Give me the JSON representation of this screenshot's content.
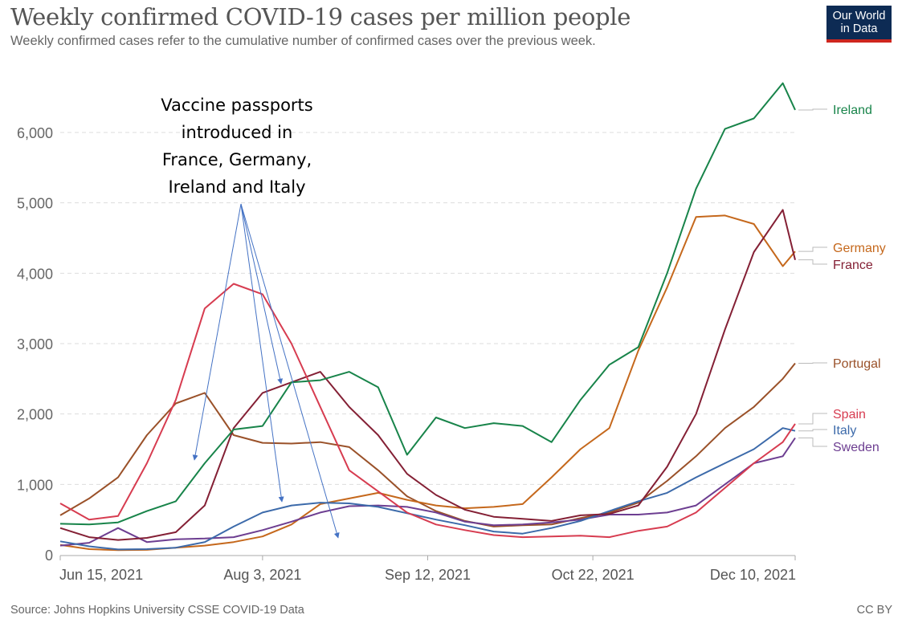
{
  "header": {
    "title": "Weekly confirmed COVID-19 cases per million people",
    "subtitle": "Weekly confirmed cases refer to the cumulative number of confirmed cases over the previous week.",
    "logo_line1": "Our World",
    "logo_line2": "in Data"
  },
  "footer": {
    "source": "Source: Johns Hopkins University CSSE COVID-19 Data",
    "license": "CC BY"
  },
  "colors": {
    "logo_bg": "#0d2b54",
    "logo_accent": "#ce261e",
    "arrow": "#4472c4"
  },
  "chart_data": {
    "type": "line",
    "title": "Weekly confirmed COVID-19 cases per million people",
    "xlabel": "",
    "ylabel": "",
    "x_unit": "days since Jun 15, 2021",
    "xlim": [
      0,
      178
    ],
    "ylim": [
      0,
      6000
    ],
    "grid": true,
    "legend": "right (labels at line ends)",
    "yticks": [
      0,
      1000,
      2000,
      3000,
      4000,
      5000,
      6000
    ],
    "ytick_labels": [
      "0",
      "1,000",
      "2,000",
      "3,000",
      "4,000",
      "5,000",
      "6,000"
    ],
    "xticks": [
      0,
      49,
      89,
      129,
      178
    ],
    "xtick_labels": [
      "Jun 15, 2021",
      "Aug 3, 2021",
      "Sep 12, 2021",
      "Oct 22, 2021",
      "Dec 10, 2021"
    ],
    "x": [
      0,
      7,
      14,
      21,
      28,
      35,
      42,
      49,
      56,
      63,
      70,
      77,
      84,
      91,
      98,
      105,
      112,
      119,
      126,
      133,
      140,
      147,
      154,
      161,
      168,
      175,
      178
    ],
    "series": [
      {
        "name": "Ireland",
        "color": "#18844a",
        "values": [
          440,
          430,
          460,
          620,
          760,
          1300,
          1780,
          1830,
          2450,
          2480,
          2600,
          2380,
          1420,
          1950,
          1800,
          1870,
          1830,
          1600,
          2200,
          2700,
          2950,
          4000,
          5200,
          6050,
          6200,
          6700,
          6320
        ]
      },
      {
        "name": "Germany",
        "color": "#c5681c",
        "values": [
          140,
          80,
          65,
          70,
          100,
          130,
          180,
          260,
          430,
          720,
          800,
          880,
          780,
          700,
          660,
          680,
          720,
          1100,
          1500,
          1800,
          2900,
          3800,
          4800,
          4820,
          4700,
          4100,
          4310
        ]
      },
      {
        "name": "France",
        "color": "#842035",
        "values": [
          380,
          250,
          210,
          240,
          320,
          700,
          1800,
          2300,
          2450,
          2600,
          2100,
          1700,
          1150,
          850,
          640,
          540,
          510,
          480,
          560,
          580,
          700,
          1250,
          2000,
          3200,
          4300,
          4900,
          4190
        ]
      },
      {
        "name": "Portugal",
        "color": "#9a5129",
        "values": [
          560,
          800,
          1100,
          1700,
          2150,
          2300,
          1700,
          1590,
          1580,
          1600,
          1530,
          1200,
          830,
          620,
          480,
          400,
          420,
          430,
          520,
          600,
          740,
          1050,
          1400,
          1800,
          2100,
          2500,
          2720
        ]
      },
      {
        "name": "Spain",
        "color": "#d73c50",
        "values": [
          730,
          500,
          550,
          1300,
          2200,
          3500,
          3850,
          3700,
          3000,
          2100,
          1200,
          900,
          600,
          430,
          350,
          280,
          250,
          260,
          270,
          250,
          340,
          400,
          600,
          950,
          1300,
          1600,
          1860
        ]
      },
      {
        "name": "Italy",
        "color": "#3c6aaa",
        "values": [
          190,
          120,
          75,
          80,
          100,
          180,
          400,
          600,
          700,
          740,
          730,
          680,
          590,
          500,
          420,
          330,
          300,
          380,
          480,
          620,
          760,
          880,
          1100,
          1300,
          1500,
          1800,
          1760
        ]
      },
      {
        "name": "Sweden",
        "color": "#6d3e91",
        "values": [
          130,
          170,
          380,
          180,
          220,
          230,
          250,
          350,
          470,
          600,
          690,
          700,
          680,
          600,
          470,
          420,
          430,
          460,
          500,
          570,
          570,
          600,
          700,
          1000,
          1300,
          1400,
          1660
        ]
      }
    ],
    "annotations": [
      {
        "text_lines": [
          "Vaccine passports",
          "introduced in",
          "France, Germany,",
          "Ireland and Italy"
        ],
        "arrows_to": [
          "Ireland",
          "France",
          "Italy",
          "Germany"
        ]
      }
    ]
  }
}
